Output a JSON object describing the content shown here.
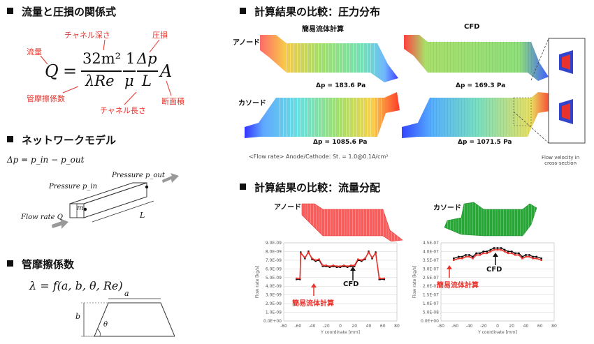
{
  "left": {
    "section1": {
      "title": "流量と圧損の関係式",
      "labels": {
        "channel_depth": "チャネル深さ",
        "pressure_loss": "圧損",
        "flow_rate": "流量",
        "pipe_friction": "管摩擦係数",
        "channel_length": "チャネル長さ",
        "cross_section_area": "断面積"
      },
      "formula": {
        "lhs": "Q",
        "equals": "=",
        "num1": "32m²",
        "den1": "λRe",
        "num2": "1",
        "den2": "μ",
        "num3": "Δp",
        "den3": "L",
        "tail": "A"
      }
    },
    "section2": {
      "title": "ネットワークモデル",
      "equation": "Δp = p_in − p_out",
      "pressure_out": "Pressure p_out",
      "pressure_in": "Pressure p_in",
      "flow_rate": "Flow rate Q",
      "m": "m",
      "L": "L"
    },
    "section3": {
      "title": "管摩擦係数",
      "equation": "λ = f(a, b, θ, Re)",
      "a": "a",
      "b": "b",
      "theta": "θ"
    }
  },
  "right": {
    "pressure": {
      "title": "計算結果の比較：圧力分布",
      "col_simple": "簡易流体計算",
      "col_cfd": "CFD",
      "anode": "アノード",
      "cathode": "カソード",
      "dp_anode_simple": "Δp = 183.6 Pa",
      "dp_anode_cfd": "Δp = 169.3 Pa",
      "dp_cathode_simple": "Δp = 1085.6 Pa",
      "dp_cathode_cfd": "Δp = 1071.5 Pa",
      "note": "<Flow rate> Anode/Cathode: St. = 1.0@0.1A/cm²",
      "inset_caption": "Flow velocity in\ncross-section"
    },
    "flow": {
      "title": "計算結果の比較：流量分配",
      "anode": "アノード",
      "cathode": "カソード",
      "cfd_label": "CFD",
      "simple_label": "簡易流体計算",
      "x_axis_title": "Y coordinate [mm]",
      "y_axis_title": "Flow rate [kg/s]"
    }
  },
  "chart_data": [
    {
      "type": "line",
      "title": "",
      "xlabel": "Y coordinate [mm]",
      "ylabel": "Flow rate [kg/s]",
      "xlim": [
        -80,
        80
      ],
      "ylim": [
        0,
        9e-09
      ],
      "x_ticks": [
        "-80",
        "-60",
        "-40",
        "-20",
        "0",
        "20",
        "40",
        "60",
        "80"
      ],
      "y_ticks": [
        "0.0E+00",
        "1.0E-09",
        "2.0E-09",
        "3.0E-09",
        "4.0E-09",
        "5.0E-09",
        "6.0E-09",
        "7.0E-09",
        "8.0E-09",
        "9.0E-09"
      ],
      "series": [
        {
          "name": "CFD",
          "color": "#000000",
          "x": [
            -62,
            -57,
            -56,
            -50,
            -45,
            -40,
            -35,
            -30,
            -25,
            -20,
            -15,
            -10,
            -5,
            0,
            5,
            10,
            15,
            20,
            25,
            30,
            35,
            40,
            45,
            50,
            55,
            56,
            62
          ],
          "y": [
            4.8e-09,
            4.8e-09,
            7.9e-09,
            7.2e-09,
            8e-09,
            7.1e-09,
            6.9e-09,
            7e-09,
            6.3e-09,
            6.3e-09,
            6.2e-09,
            6.3e-09,
            6.2e-09,
            6.2e-09,
            6.3e-09,
            6.2e-09,
            6.3e-09,
            6.3e-09,
            7e-09,
            6.9e-09,
            7.1e-09,
            8e-09,
            7.2e-09,
            7.9e-09,
            4.8e-09,
            4.8e-09,
            4.8e-09
          ]
        },
        {
          "name": "簡易流体計算",
          "color": "#e8322b",
          "x": [
            -62,
            -57,
            -56,
            -50,
            -45,
            -40,
            -35,
            -30,
            -25,
            -20,
            -15,
            -10,
            -5,
            0,
            5,
            10,
            15,
            20,
            25,
            30,
            35,
            40,
            45,
            50,
            55,
            56,
            62
          ],
          "y": [
            4.9e-09,
            4.9e-09,
            7.8e-09,
            7.3e-09,
            7.9e-09,
            7.2e-09,
            7e-09,
            7.1e-09,
            6.4e-09,
            6.4e-09,
            6.3e-09,
            6.4e-09,
            6.3e-09,
            6.3e-09,
            6.4e-09,
            6.3e-09,
            6.4e-09,
            6.4e-09,
            7.1e-09,
            7e-09,
            7.2e-09,
            7.9e-09,
            7.3e-09,
            7.8e-09,
            4.9e-09,
            4.9e-09,
            4.9e-09
          ]
        }
      ]
    },
    {
      "type": "line",
      "title": "",
      "xlabel": "Y coordinate [mm]",
      "ylabel": "Flow rate [kg/s]",
      "xlim": [
        -80,
        80
      ],
      "ylim": [
        0,
        4.5e-07
      ],
      "x_ticks": [
        "-80",
        "-60",
        "-40",
        "-20",
        "0",
        "20",
        "40",
        "60",
        "80"
      ],
      "y_ticks": [
        "0.0E+00",
        "5.0E-08",
        "1.0E-07",
        "1.5E-07",
        "2.0E-07",
        "2.5E-07",
        "3.0E-07",
        "3.5E-07",
        "4.0E-07",
        "4.5E-07"
      ],
      "series": [
        {
          "name": "CFD",
          "color": "#000000",
          "x": [
            -62,
            -55,
            -50,
            -45,
            -40,
            -35,
            -30,
            -25,
            -20,
            -15,
            -10,
            -5,
            0,
            5,
            10,
            15,
            20,
            25,
            30,
            35,
            40,
            45,
            50,
            55,
            62
          ],
          "y": [
            3.6e-07,
            3.7e-07,
            3.7e-07,
            3.8e-07,
            3.8e-07,
            3.7e-07,
            3.9e-07,
            3.9e-07,
            4e-07,
            4e-07,
            4.1e-07,
            4.2e-07,
            4.2e-07,
            4.2e-07,
            4.1e-07,
            4e-07,
            4e-07,
            3.9e-07,
            3.9e-07,
            3.7e-07,
            3.8e-07,
            3.8e-07,
            3.7e-07,
            3.7e-07,
            3.6e-07
          ]
        },
        {
          "name": "簡易流体計算",
          "color": "#e8322b",
          "x": [
            -62,
            -55,
            -50,
            -45,
            -40,
            -35,
            -30,
            -25,
            -20,
            -15,
            -10,
            -5,
            0,
            5,
            10,
            15,
            20,
            25,
            30,
            35,
            40,
            45,
            50,
            55,
            62
          ],
          "y": [
            3.5e-07,
            3.6e-07,
            3.6e-07,
            3.7e-07,
            3.7e-07,
            3.6e-07,
            3.8e-07,
            3.8e-07,
            3.9e-07,
            3.9e-07,
            4e-07,
            4.1e-07,
            4.1e-07,
            4.1e-07,
            4e-07,
            3.9e-07,
            3.9e-07,
            3.8e-07,
            3.8e-07,
            3.6e-07,
            3.7e-07,
            3.7e-07,
            3.6e-07,
            3.6e-07,
            3.5e-07
          ]
        }
      ]
    }
  ]
}
